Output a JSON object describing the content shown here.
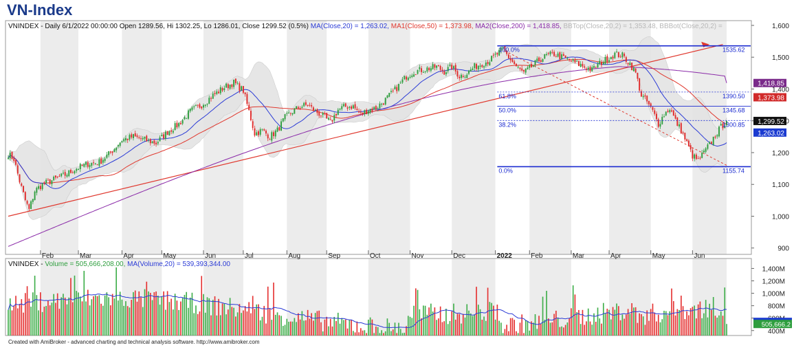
{
  "title": "VN-Index",
  "footer": "Created with AmiBroker - advanced charting and technical analysis software. http://www.amibroker.com",
  "colors": {
    "up": "#2e9e3e",
    "down": "#e02b2b",
    "ma20": "#2b3bd6",
    "ma50": "#e0382e",
    "ma200": "#8a2aa8",
    "band": "#e4e4e4",
    "fib": "#1a2ad0",
    "vol_up": "#3fae4a",
    "vol_down": "#e53232",
    "alt_month": "#ececec"
  },
  "header": {
    "ohlc": "VNINDEX - Daily 6/1/2022 00:00:00 Open 1289.56, Hi 1302.25, Lo 1286.01, Close 1299.52 (0.5%)",
    "ma20": "MA(Close,20) = 1,263.02,",
    "ma50": "MA1(Close,50) = 1,373.98,",
    "ma200": "MA2(Close,200) = 1,418.85,",
    "bbtop": "BBTop(Close,20,2) = 1,353.48,",
    "bbbot": "BBBot(Close,20,2) ="
  },
  "vol_header": {
    "name": "VNINDEX -",
    "volume": "Volume = 505,666,208.00,",
    "ma": "MA(Volume,20) = 539,393,344.00"
  },
  "chart_data": {
    "type": "candlestick",
    "y_ticks": [
      "900",
      "1,000",
      "1,100",
      "1,200",
      "1,300",
      "1,400",
      "1,500",
      "1,600"
    ],
    "ylim": [
      880,
      1615
    ],
    "months": [
      "Feb",
      "Mar",
      "Apr",
      "May",
      "Jun",
      "Jul",
      "Aug",
      "Sep",
      "Oct",
      "Nov",
      "Dec",
      "2022",
      "Feb",
      "Mar",
      "Apr",
      "May",
      "Jun"
    ],
    "price_path": [
      [
        0,
        1195
      ],
      [
        3,
        1180
      ],
      [
        6,
        1110
      ],
      [
        9,
        1050
      ],
      [
        11,
        1020
      ],
      [
        14,
        1080
      ],
      [
        18,
        1100
      ],
      [
        24,
        1115
      ],
      [
        30,
        1130
      ],
      [
        36,
        1150
      ],
      [
        42,
        1165
      ],
      [
        48,
        1170
      ],
      [
        54,
        1200
      ],
      [
        60,
        1240
      ],
      [
        66,
        1250
      ],
      [
        72,
        1240
      ],
      [
        78,
        1230
      ],
      [
        84,
        1265
      ],
      [
        90,
        1290
      ],
      [
        96,
        1330
      ],
      [
        102,
        1350
      ],
      [
        108,
        1380
      ],
      [
        114,
        1405
      ],
      [
        119,
        1420
      ],
      [
        124,
        1395
      ],
      [
        127,
        1330
      ],
      [
        130,
        1260
      ],
      [
        134,
        1270
      ],
      [
        138,
        1250
      ],
      [
        142,
        1270
      ],
      [
        146,
        1310
      ],
      [
        150,
        1330
      ],
      [
        154,
        1345
      ],
      [
        158,
        1350
      ],
      [
        162,
        1330
      ],
      [
        166,
        1315
      ],
      [
        170,
        1295
      ],
      [
        174,
        1335
      ],
      [
        178,
        1345
      ],
      [
        182,
        1345
      ],
      [
        186,
        1320
      ],
      [
        190,
        1335
      ],
      [
        194,
        1340
      ],
      [
        198,
        1360
      ],
      [
        202,
        1385
      ],
      [
        206,
        1410
      ],
      [
        210,
        1440
      ],
      [
        214,
        1455
      ],
      [
        218,
        1460
      ],
      [
        222,
        1465
      ],
      [
        226,
        1470
      ],
      [
        230,
        1455
      ],
      [
        234,
        1470
      ],
      [
        238,
        1440
      ],
      [
        242,
        1450
      ],
      [
        246,
        1470
      ],
      [
        250,
        1480
      ],
      [
        254,
        1490
      ],
      [
        258,
        1510
      ],
      [
        261,
        1525
      ],
      [
        264,
        1500
      ],
      [
        268,
        1470
      ],
      [
        272,
        1450
      ],
      [
        276,
        1470
      ],
      [
        280,
        1490
      ],
      [
        284,
        1505
      ],
      [
        288,
        1510
      ],
      [
        292,
        1500
      ],
      [
        296,
        1490
      ],
      [
        300,
        1480
      ],
      [
        304,
        1470
      ],
      [
        308,
        1460
      ],
      [
        312,
        1480
      ],
      [
        316,
        1495
      ],
      [
        320,
        1510
      ],
      [
        324,
        1505
      ],
      [
        328,
        1480
      ],
      [
        331,
        1450
      ],
      [
        334,
        1380
      ],
      [
        337,
        1360
      ],
      [
        340,
        1330
      ],
      [
        343,
        1290
      ],
      [
        346,
        1320
      ],
      [
        349,
        1340
      ],
      [
        352,
        1300
      ],
      [
        355,
        1270
      ],
      [
        358,
        1230
      ],
      [
        361,
        1190
      ],
      [
        364,
        1175
      ],
      [
        367,
        1200
      ],
      [
        370,
        1225
      ],
      [
        373,
        1255
      ],
      [
        376,
        1280
      ],
      [
        379,
        1299.52
      ]
    ],
    "fib_levels": [
      {
        "label": "100.0%",
        "value": "1535.62",
        "y": 1535.62
      },
      {
        "label": "61.8%",
        "value": "1390.50",
        "y": 1390.5
      },
      {
        "label": "50.0%",
        "value": "1345.68",
        "y": 1345.68
      },
      {
        "label": "38.2%",
        "value": "1300.85",
        "y": 1300.85
      },
      {
        "label": "0.0%",
        "value": "1155.74",
        "y": 1155.74
      }
    ],
    "last_values": [
      {
        "value": "1,418.85",
        "y": 1418.85,
        "color": "#7a2a8a"
      },
      {
        "value": "1,373.98",
        "y": 1373.98,
        "color": "#d12a2a"
      },
      {
        "value": "1,299.52",
        "y": 1299.52,
        "color": "#111111"
      },
      {
        "value": "1,263.02",
        "y": 1263.02,
        "color": "#1a3ad0"
      }
    ],
    "vol_ticks": [
      "400M",
      "600M",
      "800M",
      "1,000M",
      "1,200M",
      "1,400M"
    ],
    "vol_ylim": [
      320,
      1560
    ],
    "vol_last": [
      {
        "value": "539,393.3",
        "y": 539.4,
        "color": "#1a3ad0"
      },
      {
        "value": "505,666.2",
        "y": 505.7,
        "color": "#2e9e3e"
      }
    ]
  }
}
